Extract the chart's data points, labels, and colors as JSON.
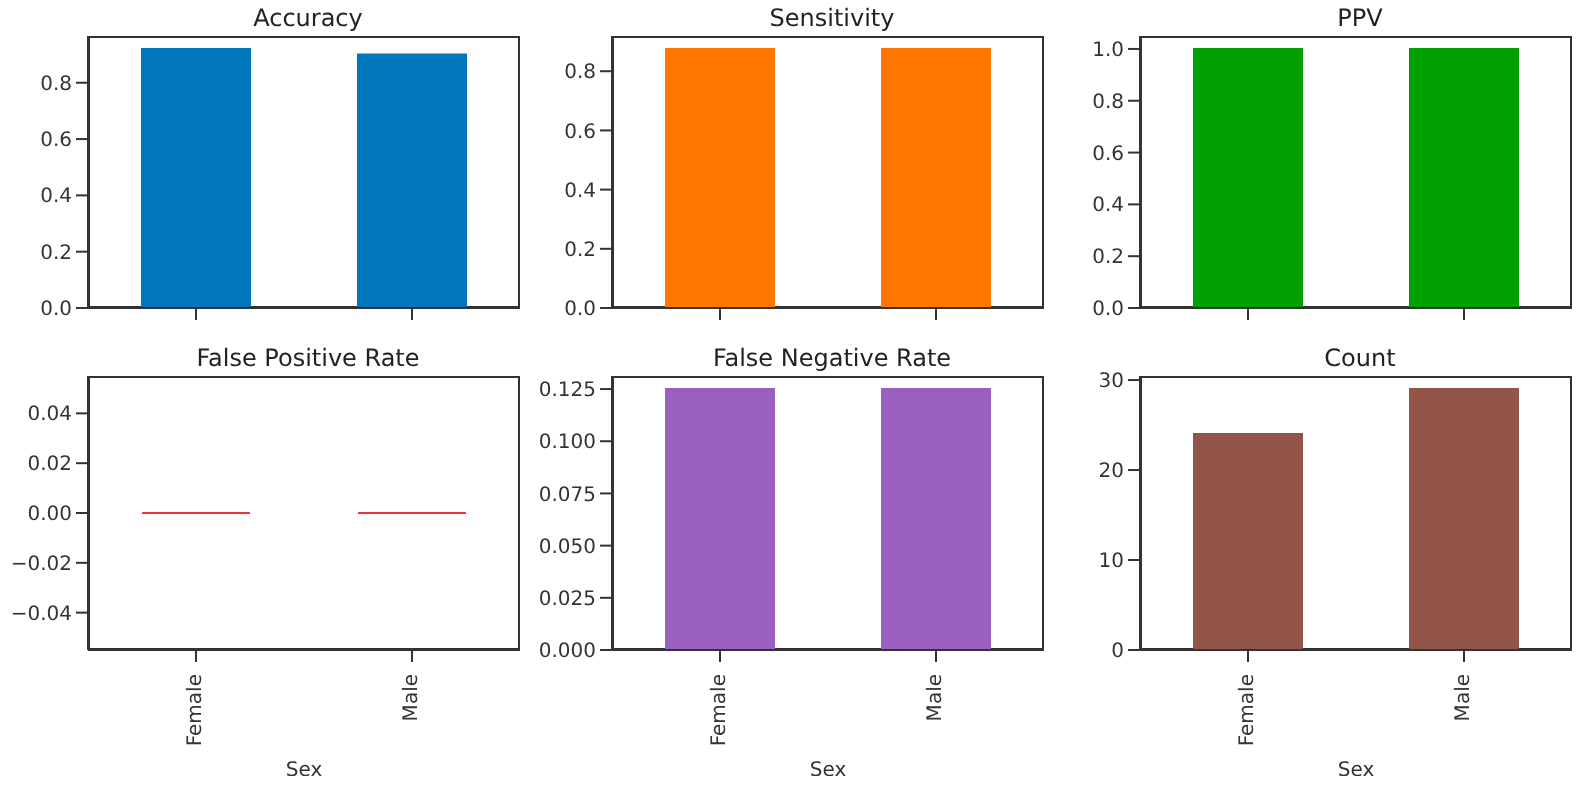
{
  "chart_data": [
    {
      "type": "bar",
      "title": "Accuracy",
      "categories": [
        null,
        null
      ],
      "values": [
        0.92,
        0.9
      ],
      "color": "#0077bb",
      "ylim": [
        0,
        0.966
      ],
      "yticks": [
        {
          "value": 0,
          "label": "0.0"
        },
        0.2,
        0.4,
        0.6,
        0.8
      ],
      "tick_labels": "y"
    },
    {
      "type": "bar",
      "title": "Sensitivity",
      "categories": [
        null,
        null
      ],
      "values": [
        0.875,
        0.875
      ],
      "color": "#ff7700",
      "ylim": [
        0,
        0.919
      ],
      "yticks": [
        {
          "value": 0,
          "label": "0.0"
        },
        0.2,
        0.4,
        0.6,
        0.8
      ],
      "tick_labels": "y"
    },
    {
      "type": "bar",
      "title": "PPV",
      "categories": [
        null,
        null
      ],
      "values": [
        1,
        1
      ],
      "color": "#00a000",
      "ylim": [
        0,
        1.05
      ],
      "yticks": [
        {
          "value": 0,
          "label": "0.0"
        },
        0.2,
        0.4,
        0.6,
        0.8,
        {
          "value": 1,
          "label": "1.0"
        }
      ],
      "tick_labels": "y"
    },
    {
      "type": "bar",
      "title": "False Positive Rate",
      "xlabel": "Sex",
      "categories": [
        "Female",
        "Male"
      ],
      "values": [
        0,
        0
      ],
      "color": "#e8393a",
      "ylim": [
        -0.055,
        0.055
      ],
      "yticks": [
        {
          "value": -0.04,
          "label": "−0.04"
        },
        {
          "value": -0.02,
          "label": "−0.02"
        },
        {
          "value": 0,
          "label": "0.00"
        },
        0.02,
        0.04
      ]
    },
    {
      "type": "bar",
      "title": "False Negative Rate",
      "xlabel": "Sex",
      "categories": [
        "Female",
        "Male"
      ],
      "values": [
        0.125,
        0.125
      ],
      "color": "#9b5fc0",
      "ylim": [
        0,
        0.13125
      ],
      "yticks": [
        {
          "value": 0,
          "label": "0.000"
        },
        0.025,
        {
          "value": 0.05,
          "label": "0.050"
        },
        0.075,
        {
          "value": 0.1,
          "label": "0.100"
        },
        0.125
      ]
    },
    {
      "type": "bar",
      "title": "Count",
      "xlabel": "Sex",
      "categories": [
        "Female",
        "Male"
      ],
      "values": [
        24,
        29
      ],
      "color": "#935548",
      "ylim": [
        0,
        30.45
      ],
      "yticks": [
        0,
        10,
        20,
        30
      ]
    }
  ]
}
